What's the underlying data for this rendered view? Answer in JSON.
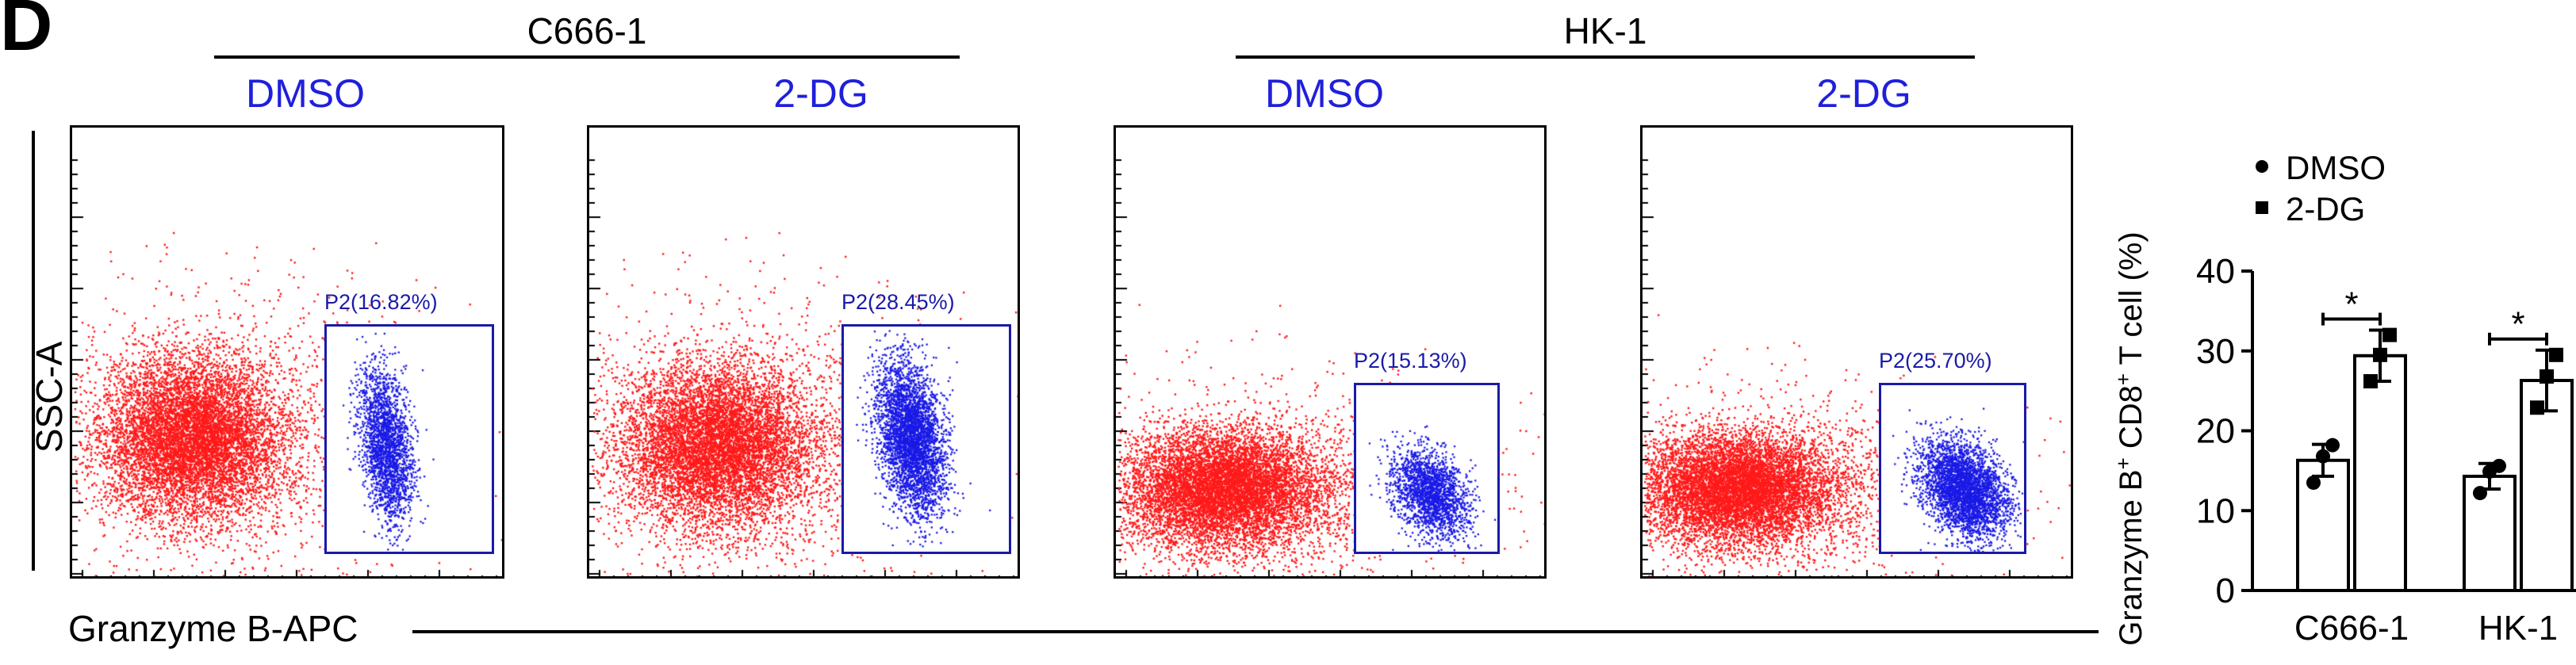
{
  "panel_letter": "D",
  "groups": [
    {
      "title": "C666-1"
    },
    {
      "title": "HK-1"
    }
  ],
  "flow": {
    "y_axis_title": "SSC-A",
    "x_axis_title": "Granzyme B-APC",
    "plots": [
      {
        "condition": "DMSO",
        "gate_label": "P2(16.82%)",
        "gate_percent": 16.82
      },
      {
        "condition": "2-DG",
        "gate_label": "P2(28.45%)",
        "gate_percent": 28.45
      },
      {
        "condition": "DMSO",
        "gate_label": "P2(15.13%)",
        "gate_percent": 15.13
      },
      {
        "condition": "2-DG",
        "gate_label": "P2(25.70%)",
        "gate_percent": 25.7
      }
    ],
    "colors": {
      "ungated": "#ff1a1a",
      "gated": "#1a1ae6",
      "gate": "#1a1aa8",
      "condition_label": "#1f1fdc"
    }
  },
  "chart_data": {
    "type": "bar",
    "ylabel_main": "Granzyme B",
    "ylabel_sup1": "+",
    "ylabel_mid": " CD8",
    "ylabel_sup2": "+",
    "ylabel_end": " T cell (%)",
    "categories": [
      "C666-1",
      "HK-1"
    ],
    "ylim": [
      0,
      40
    ],
    "yticks": [
      0,
      10,
      20,
      30,
      40
    ],
    "legend_position": "top",
    "series": [
      {
        "name": "DMSO",
        "marker": "circle",
        "values": [
          16.3,
          14.3
        ],
        "errors": [
          2.0,
          1.6
        ],
        "points": [
          [
            13.5,
            16.8,
            18.2
          ],
          [
            12.2,
            14.9,
            15.6
          ]
        ]
      },
      {
        "name": "2-DG",
        "marker": "square",
        "values": [
          29.4,
          26.3
        ],
        "errors": [
          3.2,
          3.8
        ],
        "points": [
          [
            26.2,
            29.5,
            32.0
          ],
          [
            22.9,
            26.8,
            29.5
          ]
        ]
      }
    ],
    "significance": [
      {
        "category": "C666-1",
        "label": "*"
      },
      {
        "category": "HK-1",
        "label": "*"
      }
    ]
  }
}
